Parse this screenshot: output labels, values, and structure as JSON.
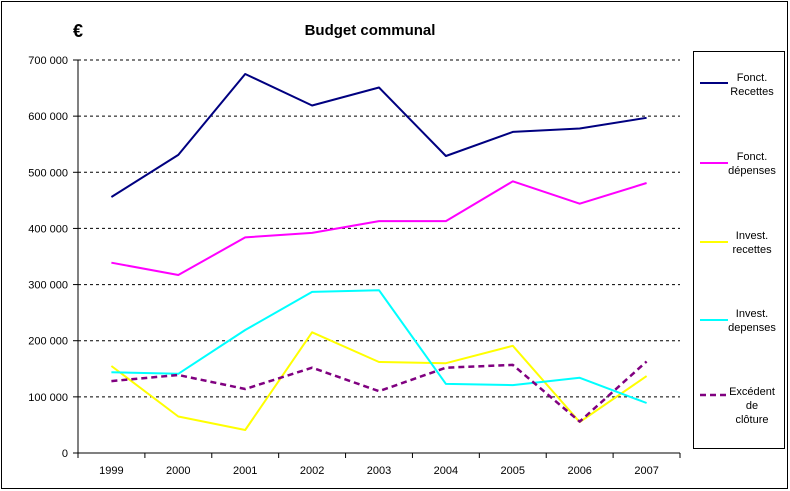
{
  "chart_data": {
    "type": "line",
    "title": "Budget communal",
    "ylabel": "€",
    "categories": [
      "1999",
      "2000",
      "2001",
      "2002",
      "2003",
      "2004",
      "2005",
      "2006",
      "2007"
    ],
    "ylim": [
      0,
      700000
    ],
    "yticks": [
      0,
      100000,
      200000,
      300000,
      400000,
      500000,
      600000,
      700000
    ],
    "ytick_labels": [
      "0",
      "100 000",
      "200 000",
      "300 000",
      "400 000",
      "500 000",
      "600 000",
      "700 000"
    ],
    "grid": true,
    "legend": "right",
    "series": [
      {
        "name": "Fonct. Recettes",
        "color": "#000080",
        "dashed": false,
        "values": [
          456000,
          531000,
          675000,
          619000,
          651000,
          529000,
          572000,
          578000,
          597000
        ]
      },
      {
        "name": "Fonct. dépenses",
        "color": "#FF00FF",
        "dashed": false,
        "values": [
          339000,
          317000,
          384000,
          392000,
          413000,
          413000,
          484000,
          444000,
          481000
        ]
      },
      {
        "name": "Invest. recettes",
        "color": "#FFFF00",
        "dashed": false,
        "values": [
          155000,
          65000,
          41000,
          215000,
          162000,
          160000,
          191000,
          55000,
          137000
        ]
      },
      {
        "name": "Invest. depenses",
        "color": "#00FFFF",
        "dashed": false,
        "values": [
          144000,
          141000,
          219000,
          287000,
          290000,
          123000,
          121000,
          134000,
          89000
        ]
      },
      {
        "name": "Excédent de clôture",
        "color": "#800080",
        "dashed": true,
        "values": [
          128000,
          139000,
          114000,
          152000,
          110000,
          152000,
          157000,
          56000,
          163000
        ]
      }
    ]
  }
}
